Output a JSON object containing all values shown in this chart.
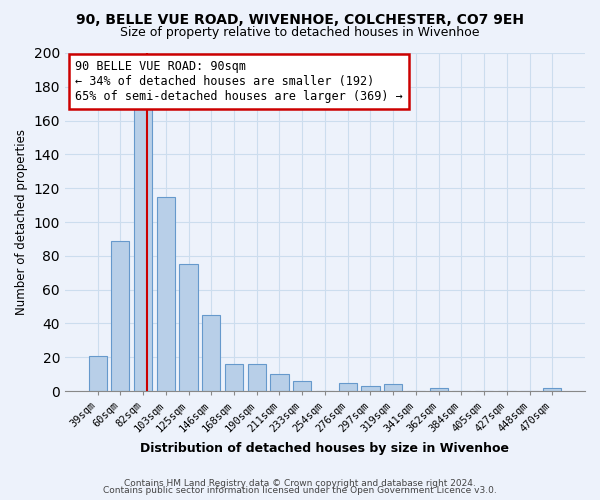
{
  "title": "90, BELLE VUE ROAD, WIVENHOE, COLCHESTER, CO7 9EH",
  "subtitle": "Size of property relative to detached houses in Wivenhoe",
  "xlabel": "Distribution of detached houses by size in Wivenhoe",
  "ylabel": "Number of detached properties",
  "bar_labels": [
    "39sqm",
    "60sqm",
    "82sqm",
    "103sqm",
    "125sqm",
    "146sqm",
    "168sqm",
    "190sqm",
    "211sqm",
    "233sqm",
    "254sqm",
    "276sqm",
    "297sqm",
    "319sqm",
    "341sqm",
    "362sqm",
    "384sqm",
    "405sqm",
    "427sqm",
    "448sqm",
    "470sqm"
  ],
  "bar_values": [
    21,
    89,
    168,
    115,
    75,
    45,
    16,
    16,
    10,
    6,
    0,
    5,
    3,
    4,
    0,
    2,
    0,
    0,
    0,
    0,
    2
  ],
  "bar_color": "#b8cfe8",
  "bar_edge_color": "#6699cc",
  "vline_color": "#cc0000",
  "annotation_title": "90 BELLE VUE ROAD: 90sqm",
  "annotation_line1": "← 34% of detached houses are smaller (192)",
  "annotation_line2": "65% of semi-detached houses are larger (369) →",
  "annotation_box_color": "white",
  "annotation_box_edge": "#cc0000",
  "ylim": [
    0,
    200
  ],
  "yticks": [
    0,
    20,
    40,
    60,
    80,
    100,
    120,
    140,
    160,
    180,
    200
  ],
  "footnote1": "Contains HM Land Registry data © Crown copyright and database right 2024.",
  "footnote2": "Contains public sector information licensed under the Open Government Licence v3.0.",
  "bg_color": "#edf2fb"
}
